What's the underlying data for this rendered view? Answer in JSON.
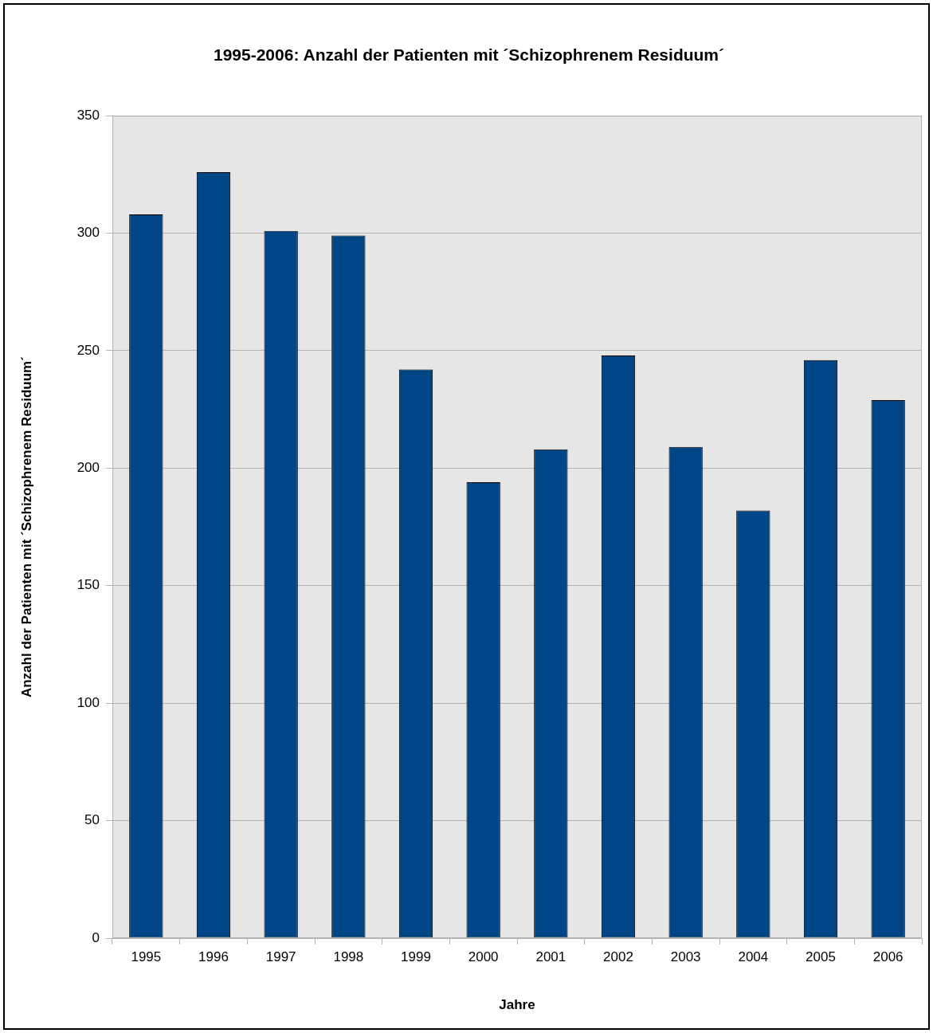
{
  "chart_data": {
    "type": "bar",
    "title": "1995-2006: Anzahl der Patienten mit ´Schizophrenem Residuum´",
    "xlabel": "Jahre",
    "ylabel": "Anzahl der Patienten mit ´Schizophrenem Residuum´",
    "categories": [
      "1995",
      "1996",
      "1997",
      "1998",
      "1999",
      "2000",
      "2001",
      "2002",
      "2003",
      "2004",
      "2005",
      "2006"
    ],
    "values": [
      308,
      326,
      301,
      299,
      242,
      194,
      208,
      248,
      209,
      182,
      246,
      229
    ],
    "color": "#004586",
    "ylim": [
      0,
      350
    ],
    "yticks": [
      0,
      50,
      100,
      150,
      200,
      250,
      300,
      350
    ],
    "grid": "y"
  }
}
